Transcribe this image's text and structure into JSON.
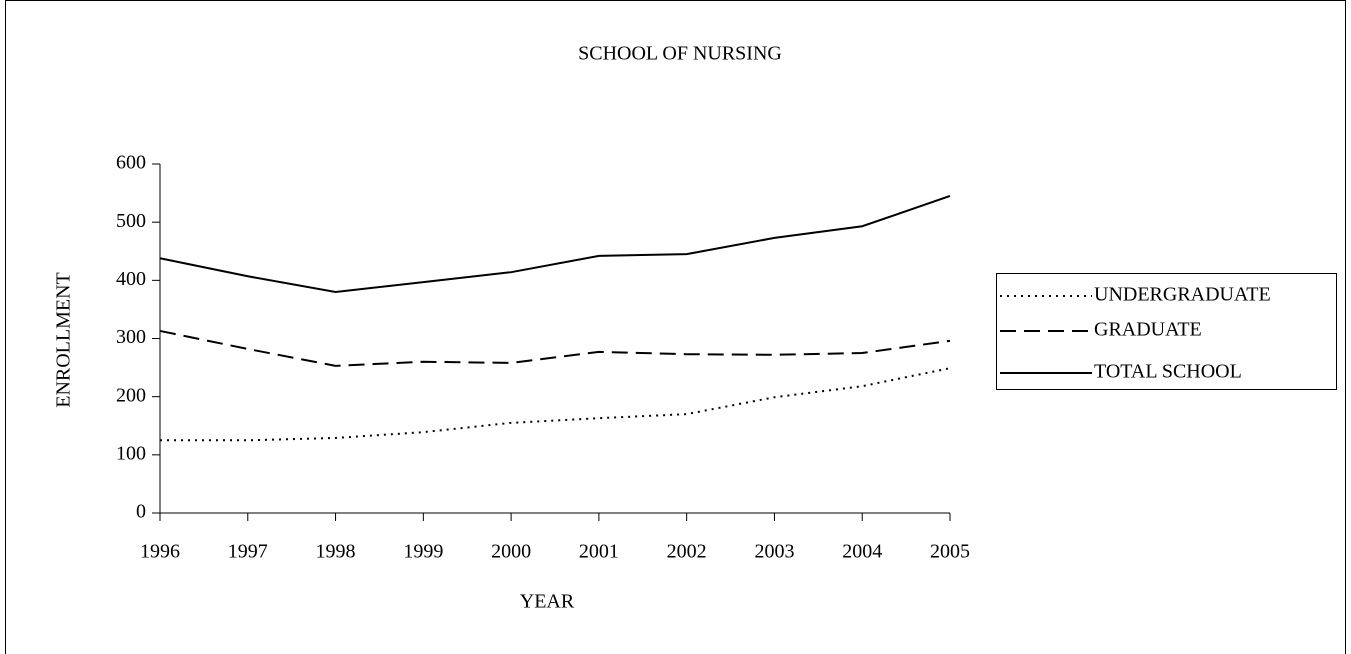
{
  "chart_data": {
    "type": "line",
    "title": "SCHOOL OF NURSING",
    "x_label": "YEAR",
    "y_label": "ENROLLMENT",
    "categories": [
      "1996",
      "1997",
      "1998",
      "1999",
      "2000",
      "2001",
      "2002",
      "2003",
      "2004",
      "2005"
    ],
    "series": [
      {
        "name": "UNDERGRADUATE",
        "color": "#000000",
        "style": "dotted",
        "values": [
          125,
          125,
          129,
          139,
          155,
          163,
          170,
          199,
          218,
          249
        ]
      },
      {
        "name": "GRADUATE",
        "color": "#000000",
        "style": "dashed",
        "values": [
          313,
          282,
          253,
          260,
          258,
          277,
          273,
          272,
          275,
          296
        ]
      },
      {
        "name": "TOTAL SCHOOL",
        "color": "#000000",
        "style": "solid",
        "values": [
          438,
          407,
          380,
          397,
          414,
          442,
          445,
          473,
          493,
          545
        ]
      }
    ],
    "ylim": [
      0,
      600
    ],
    "yticks": [
      0,
      100,
      200,
      300,
      400,
      500,
      600
    ],
    "grid": false,
    "legend": "right"
  }
}
